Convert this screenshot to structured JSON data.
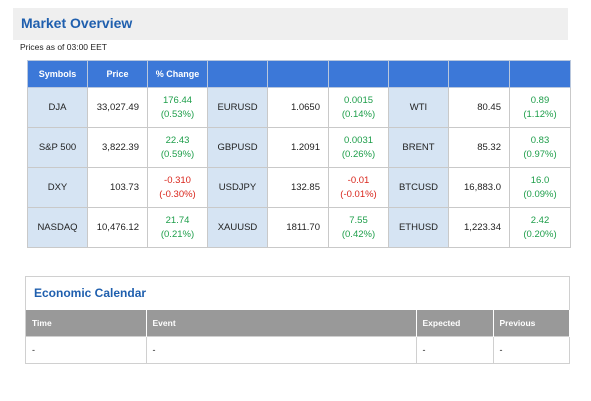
{
  "market_overview": {
    "title": "Market Overview",
    "prices_note": "Prices as of 03:00 EET",
    "headers": [
      "Symbols",
      "Price",
      "% Change",
      "",
      "",
      "",
      "",
      "",
      ""
    ],
    "rows": [
      {
        "col1": {
          "symbol": "DJA",
          "price": "33,027.49",
          "change": "176.44",
          "pct": "(0.53%)",
          "dir": "up"
        },
        "col2": {
          "symbol": "EURUSD",
          "price": "1.0650",
          "change": "0.0015",
          "pct": "(0.14%)",
          "dir": "up"
        },
        "col3": {
          "symbol": "WTI",
          "price": "80.45",
          "change": "0.89",
          "pct": "(1.12%)",
          "dir": "up"
        }
      },
      {
        "col1": {
          "symbol": "S&P 500",
          "price": "3,822.39",
          "change": "22.43",
          "pct": "(0.59%)",
          "dir": "up"
        },
        "col2": {
          "symbol": "GBPUSD",
          "price": "1.2091",
          "change": "0.0031",
          "pct": "(0.26%)",
          "dir": "up"
        },
        "col3": {
          "symbol": "BRENT",
          "price": "85.32",
          "change": "0.83",
          "pct": "(0.97%)",
          "dir": "up"
        }
      },
      {
        "col1": {
          "symbol": "DXY",
          "price": "103.73",
          "change": "-0.310",
          "pct": "(-0.30%)",
          "dir": "down"
        },
        "col2": {
          "symbol": "USDJPY",
          "price": "132.85",
          "change": "-0.01",
          "pct": "(-0.01%)",
          "dir": "down"
        },
        "col3": {
          "symbol": "BTCUSD",
          "price": "16,883.0",
          "change": "16.0",
          "pct": "(0.09%)",
          "dir": "up"
        }
      },
      {
        "col1": {
          "symbol": "NASDAQ",
          "price": "10,476.12",
          "change": "21.74",
          "pct": "(0.21%)",
          "dir": "up"
        },
        "col2": {
          "symbol": "XAUUSD",
          "price": "1811.70",
          "change": "7.55",
          "pct": "(0.42%)",
          "dir": "up"
        },
        "col3": {
          "symbol": "ETHUSD",
          "price": "1,223.34",
          "change": "2.42",
          "pct": "(0.20%)",
          "dir": "up"
        }
      }
    ]
  },
  "economic_calendar": {
    "title": "Economic Calendar",
    "headers": {
      "time": "Time",
      "event": "Event",
      "expected": "Expected",
      "previous": "Previous"
    },
    "row": {
      "time": "-",
      "event": "-",
      "expected": "-",
      "previous": "-"
    }
  },
  "colors": {
    "header_blue": "#3c78d8",
    "title_blue": "#1f5fae",
    "symbol_bg": "#d6e4f3",
    "positive": "#1e9e4a",
    "negative": "#d9261c",
    "calendar_header": "#999999"
  }
}
